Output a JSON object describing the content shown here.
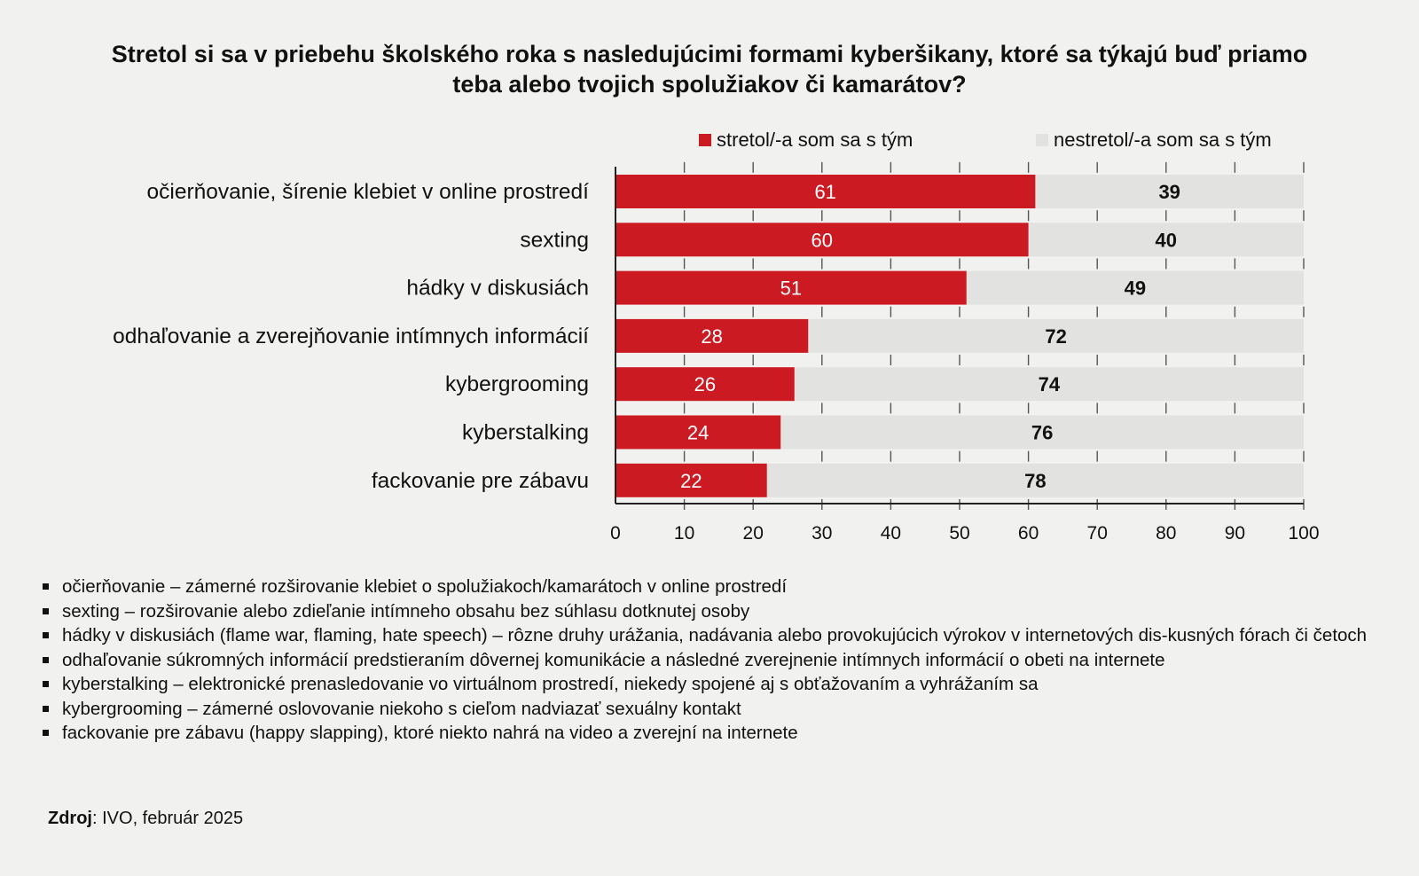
{
  "title": {
    "line1": "Stretol si sa v priebehu školského roka s nasledujúcimi formami kyberšikany, ktoré sa týkajú buď priamo",
    "line2": "teba alebo tvojich spolužiakov či kamarátov?"
  },
  "colors": {
    "accent": "#cc1a22",
    "rest": "#e2e2e0",
    "text": "#111111"
  },
  "chart_data": {
    "type": "bar",
    "orientation": "horizontal",
    "stacked": true,
    "categories": [
      "očierňovanie, šírenie klebiet v online prostredí",
      "sexting",
      "hádky v diskusiách",
      "odhaľovanie a zverejňovanie intímnych informácií",
      "kybergrooming",
      "kyberstalking",
      "fackovanie pre zábavu"
    ],
    "series": [
      {
        "name": "stretol/-a som sa s tým",
        "values": [
          61,
          60,
          51,
          28,
          26,
          24,
          22
        ]
      },
      {
        "name": "nestretol/-a som sa s tým",
        "values": [
          39,
          40,
          49,
          72,
          74,
          76,
          78
        ]
      }
    ],
    "xlim": [
      0,
      100
    ],
    "xticks": [
      "0",
      "10",
      "20",
      "30",
      "40",
      "50",
      "60",
      "70",
      "80",
      "90",
      "100"
    ],
    "legend": "top",
    "grid": true
  },
  "notes": [
    "očierňovanie – zámerné rozširovanie klebiet o spolužiakoch/kamarátoch v online prostredí",
    "sexting – rozširovanie alebo zdieľanie intímneho obsahu bez súhlasu dotknutej osoby",
    "hádky v diskusiách (flame war, flaming, hate speech) – rôzne druhy urážania, nadávania alebo provokujúcich výrokov v internetových dis-kusných fórach či četoch",
    "odhaľovanie súkromných informácií predstieraním dôvernej komunikácie a následné zverejnenie intímnych informácií o obeti na internete",
    "kyberstalking – elektronické prenasledovanie vo virtuálnom prostredí, niekedy spojené aj s obťažovaním a vyhrážaním sa",
    "kybergrooming – zámerné oslovovanie niekoho s cieľom nadviazať sexuálny kontakt",
    "fackovanie pre zábavu (happy slapping), ktoré niekto nahrá na video a zverejní na internete"
  ],
  "source": {
    "label": "Zdroj",
    "text": ": IVO, február 2025"
  }
}
